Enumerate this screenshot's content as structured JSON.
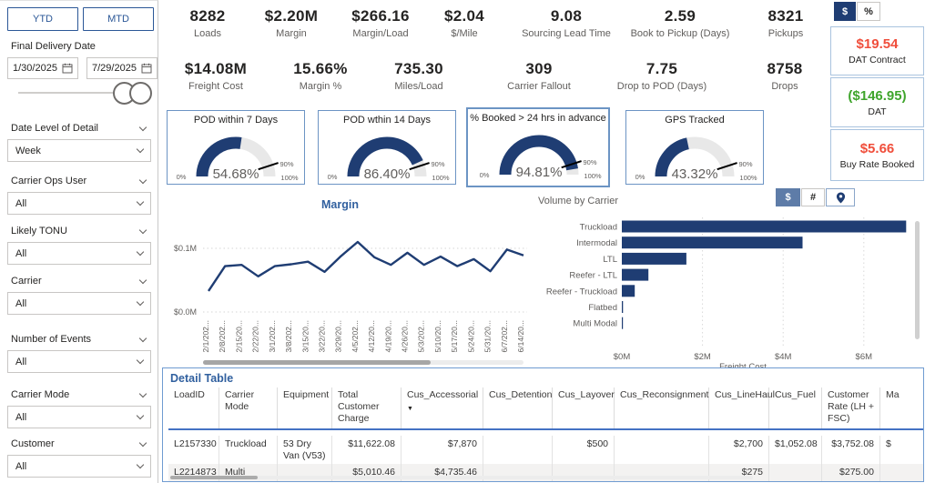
{
  "sidebar": {
    "ytd": "YTD",
    "mtd": "MTD",
    "date_filter": {
      "label": "Final Delivery Date",
      "start": "1/30/2025",
      "end": "7/29/2025"
    },
    "filters": [
      {
        "label": "Date Level of Detail",
        "value": "Week"
      },
      {
        "label": "Carrier Ops User",
        "value": "All"
      },
      {
        "label": "Likely TONU",
        "value": "All"
      },
      {
        "label": "Carrier",
        "value": "All"
      },
      {
        "label": "Number of Events",
        "value": "All"
      },
      {
        "label": "Carrier Mode",
        "value": "All"
      },
      {
        "label": "Customer",
        "value": "All"
      }
    ]
  },
  "kpis_row1": [
    {
      "value": "8282",
      "label": "Loads"
    },
    {
      "value": "$2.20M",
      "label": "Margin"
    },
    {
      "value": "$266.16",
      "label": "Margin/Load"
    },
    {
      "value": "$2.04",
      "label": "$/Mile"
    },
    {
      "value": "9.08",
      "label": "Sourcing Lead Time"
    },
    {
      "value": "2.59",
      "label": "Book to Pickup (Days)"
    },
    {
      "value": "8321",
      "label": "Pickups"
    }
  ],
  "kpis_row2": [
    {
      "value": "$14.08M",
      "label": "Freight Cost"
    },
    {
      "value": "15.66%",
      "label": "Margin %"
    },
    {
      "value": "735.30",
      "label": "Miles/Load"
    },
    {
      "value": "309",
      "label": "Carrier Fallout"
    },
    {
      "value": "7.75",
      "label": "Drop to POD (Days)"
    },
    {
      "value": "8758",
      "label": "Drops"
    }
  ],
  "rate_panel": {
    "dollar": "$",
    "percent": "%",
    "cards": [
      {
        "value": "$19.54",
        "label": "DAT Contract",
        "color": "#f04e3b"
      },
      {
        "value": "($146.95)",
        "label": "DAT",
        "color": "#3fa52c"
      },
      {
        "value": "$5.66",
        "label": "Buy Rate Booked",
        "color": "#f04e3b"
      }
    ]
  },
  "volume_buttons": {
    "dollar": "$",
    "hash": "#",
    "pin_icon": "map-pin-icon"
  },
  "chart_data": [
    {
      "type": "gauge",
      "title": "POD within 7 Days",
      "value": 54.68,
      "display": "54.68%",
      "min_label": "0%",
      "target_label": "90%",
      "max_label": "100%",
      "range": [
        0,
        100
      ],
      "target": 90
    },
    {
      "type": "gauge",
      "title": "POD wthin 14 Days",
      "value": 86.4,
      "display": "86.40%",
      "min_label": "0%",
      "target_label": "90%",
      "max_label": "100%",
      "range": [
        0,
        100
      ],
      "target": 90
    },
    {
      "type": "gauge",
      "title": "% Booked > 24 hrs in advance",
      "value": 94.81,
      "display": "94.81%",
      "min_label": "0%",
      "target_label": "90%",
      "max_label": "100%",
      "range": [
        0,
        100
      ],
      "target": 90
    },
    {
      "type": "gauge",
      "title": "GPS Tracked",
      "value": 43.32,
      "display": "43.32%",
      "min_label": "0%",
      "target_label": "90%",
      "max_label": "100%",
      "range": [
        0,
        100
      ],
      "target": 90
    },
    {
      "type": "line",
      "title": "Margin",
      "x": [
        "2/1/202...",
        "2/8/202...",
        "2/15/20...",
        "2/22/20...",
        "3/1/202...",
        "3/8/202...",
        "3/15/20...",
        "3/22/20...",
        "3/29/20...",
        "4/5/202...",
        "4/12/20...",
        "4/19/20...",
        "4/26/20...",
        "5/3/202...",
        "5/10/20...",
        "5/17/20...",
        "5/24/20...",
        "5/31/20...",
        "6/7/202...",
        "6/14/20..."
      ],
      "values": [
        0.033,
        0.072,
        0.074,
        0.056,
        0.072,
        0.075,
        0.079,
        0.063,
        0.088,
        0.11,
        0.086,
        0.074,
        0.093,
        0.074,
        0.087,
        0.072,
        0.083,
        0.064,
        0.098,
        0.089
      ],
      "value_unit": "$M",
      "yticks": [
        "$0.1M",
        "$0.0M"
      ],
      "ylim": [
        0,
        0.12
      ],
      "grid": "dotted-horizontal",
      "legend": "none"
    },
    {
      "type": "bar",
      "title": "Volume by Carrier",
      "orientation": "horizontal",
      "categories": [
        "Truckload",
        "Intermodal",
        "LTL",
        "Reefer - LTL",
        "Reefer - Truckload",
        "Flatbed",
        "Multi Modal"
      ],
      "values": [
        7.05,
        4.48,
        1.6,
        0.66,
        0.32,
        0.03,
        0.02
      ],
      "value_unit": "$M",
      "xticks": [
        "$0M",
        "$2M",
        "$4M",
        "$6M"
      ],
      "xlabel": "Freight Cost",
      "xlim": [
        0,
        7.3
      ],
      "grid": "dotted-vertical",
      "legend": "none"
    }
  ],
  "table": {
    "title": "Detail Table",
    "columns": [
      "LoadID",
      "Carrier Mode",
      "Equipment",
      "Total Customer Charge",
      "Cus_Accessorial",
      "Cus_Detention",
      "Cus_Layover",
      "Cus_Reconsignment",
      "Cus_LineHaul",
      "Cus_Fuel",
      "Customer Rate (LH + FSC)",
      "Ma"
    ],
    "sort_column": "Cus_Accessorial",
    "sort_direction": "desc",
    "rows": [
      [
        "L2157330",
        "Truckload",
        "53 Dry Van (V53)",
        "$11,622.08",
        "$7,870",
        "",
        "$500",
        "",
        "$2,700",
        "$1,052.08",
        "$3,752.08",
        "$"
      ],
      [
        "L2214873",
        "Multi",
        "",
        "$5,010.46",
        "$4,735.46",
        "",
        "",
        "",
        "$275",
        "",
        "$275.00",
        ""
      ]
    ]
  }
}
